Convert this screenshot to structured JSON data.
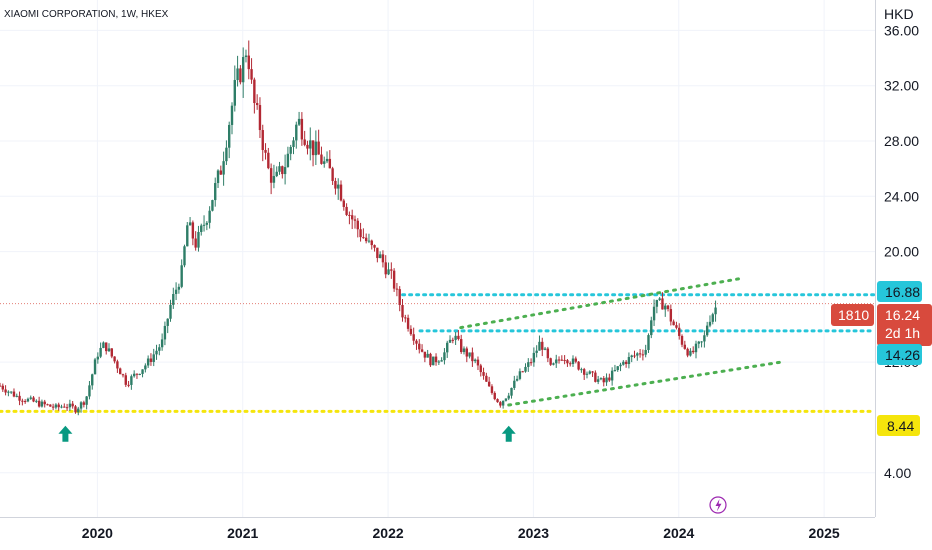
{
  "header": {
    "symbol_title": "XIAOMI CORPORATION, 1W, HKEX",
    "currency": "HKD"
  },
  "colors": {
    "up": "#089981",
    "down": "#f23645",
    "candle_up_body": "#2e7d67",
    "candle_down_body": "#b22833",
    "cyan_line": "#26c6da",
    "yellow_line": "#f5e50c",
    "channel": "#4caf50",
    "arrow": "#089981",
    "last_price": "#d84a3d",
    "level_badge": "#26c6da",
    "support_badge": "#f5e50c"
  },
  "badges": {
    "resistance": "16.88",
    "last_symbol": "1810",
    "last_price": "16.24",
    "countdown": "2d 1h",
    "support_mid": "14.26",
    "support_low": "8.44"
  },
  "chart_data": {
    "type": "candlestick",
    "title": "XIAOMI CORPORATION, 1W, HKEX",
    "currency": "HKD",
    "ylim": [
      0.8,
      38.2
    ],
    "xlim": [
      2019.33,
      2025.35
    ],
    "y_ticks": [
      "4.00",
      "12.00",
      "20.00",
      "24.00",
      "28.00",
      "32.00",
      "36.00"
    ],
    "x_ticks": [
      {
        "label": "2020",
        "x": 2020.0
      },
      {
        "label": "2021",
        "x": 2021.0
      },
      {
        "label": "2022",
        "x": 2022.0
      },
      {
        "label": "2023",
        "x": 2023.0
      },
      {
        "label": "2024",
        "x": 2024.0
      },
      {
        "label": "2025",
        "x": 2025.0
      }
    ],
    "price_path": [
      [
        2019.33,
        10.3
      ],
      [
        2019.45,
        9.5
      ],
      [
        2019.6,
        9.0
      ],
      [
        2019.72,
        8.7
      ],
      [
        2019.78,
        8.9
      ],
      [
        2019.85,
        8.6
      ],
      [
        2019.92,
        9.3
      ],
      [
        2020.0,
        12.6
      ],
      [
        2020.05,
        13.3
      ],
      [
        2020.15,
        11.5
      ],
      [
        2020.2,
        10.5
      ],
      [
        2020.3,
        11.5
      ],
      [
        2020.35,
        12.0
      ],
      [
        2020.45,
        13.5
      ],
      [
        2020.5,
        16.0
      ],
      [
        2020.58,
        18.5
      ],
      [
        2020.62,
        22.0
      ],
      [
        2020.68,
        20.5
      ],
      [
        2020.75,
        22.5
      ],
      [
        2020.85,
        26.0
      ],
      [
        2020.95,
        32.0
      ],
      [
        2021.0,
        33.5
      ],
      [
        2021.03,
        35.0
      ],
      [
        2021.07,
        31.0
      ],
      [
        2021.12,
        29.0
      ],
      [
        2021.17,
        26.0
      ],
      [
        2021.22,
        25.0
      ],
      [
        2021.3,
        26.5
      ],
      [
        2021.38,
        29.5
      ],
      [
        2021.45,
        28.0
      ],
      [
        2021.55,
        26.5
      ],
      [
        2021.65,
        25.0
      ],
      [
        2021.72,
        23.0
      ],
      [
        2021.8,
        21.5
      ],
      [
        2021.88,
        20.3
      ],
      [
        2021.95,
        19.5
      ],
      [
        2022.03,
        18.0
      ],
      [
        2022.1,
        15.5
      ],
      [
        2022.15,
        14.5
      ],
      [
        2022.22,
        13.0
      ],
      [
        2022.3,
        12.0
      ],
      [
        2022.38,
        12.5
      ],
      [
        2022.45,
        14.0
      ],
      [
        2022.5,
        13.0
      ],
      [
        2022.6,
        12.0
      ],
      [
        2022.7,
        10.0
      ],
      [
        2022.77,
        9.0
      ],
      [
        2022.83,
        9.8
      ],
      [
        2022.9,
        11.0
      ],
      [
        2022.98,
        12.0
      ],
      [
        2023.05,
        13.5
      ],
      [
        2023.12,
        11.5
      ],
      [
        2023.2,
        12.5
      ],
      [
        2023.3,
        11.8
      ],
      [
        2023.4,
        11.0
      ],
      [
        2023.48,
        10.5
      ],
      [
        2023.55,
        11.2
      ],
      [
        2023.62,
        12.0
      ],
      [
        2023.7,
        12.5
      ],
      [
        2023.78,
        13.0
      ],
      [
        2023.82,
        16.0
      ],
      [
        2023.9,
        16.3
      ],
      [
        2023.95,
        15.0
      ],
      [
        2024.02,
        13.5
      ],
      [
        2024.08,
        12.5
      ],
      [
        2024.12,
        13.0
      ],
      [
        2024.17,
        13.5
      ],
      [
        2024.2,
        15.0
      ],
      [
        2024.27,
        16.24
      ]
    ],
    "series": [
      {
        "name": "",
        "type": "hline",
        "y": 16.88
      },
      {
        "name": "",
        "type": "hline",
        "y": 14.26
      },
      {
        "name": "",
        "type": "hline",
        "y": 8.44
      },
      {
        "name": "",
        "type": "trendline",
        "points": [
          [
            2022.5,
            14.5
          ],
          [
            2024.45,
            18.1
          ]
        ]
      },
      {
        "name": "",
        "type": "trendline",
        "points": [
          [
            2022.83,
            8.9
          ],
          [
            2024.7,
            12.0
          ]
        ]
      }
    ],
    "annotations": [
      {
        "type": "up-arrow",
        "x": 2019.78,
        "y": 7.4
      },
      {
        "type": "up-arrow",
        "x": 2022.83,
        "y": 7.4
      }
    ],
    "grid": true,
    "legend": "none"
  }
}
